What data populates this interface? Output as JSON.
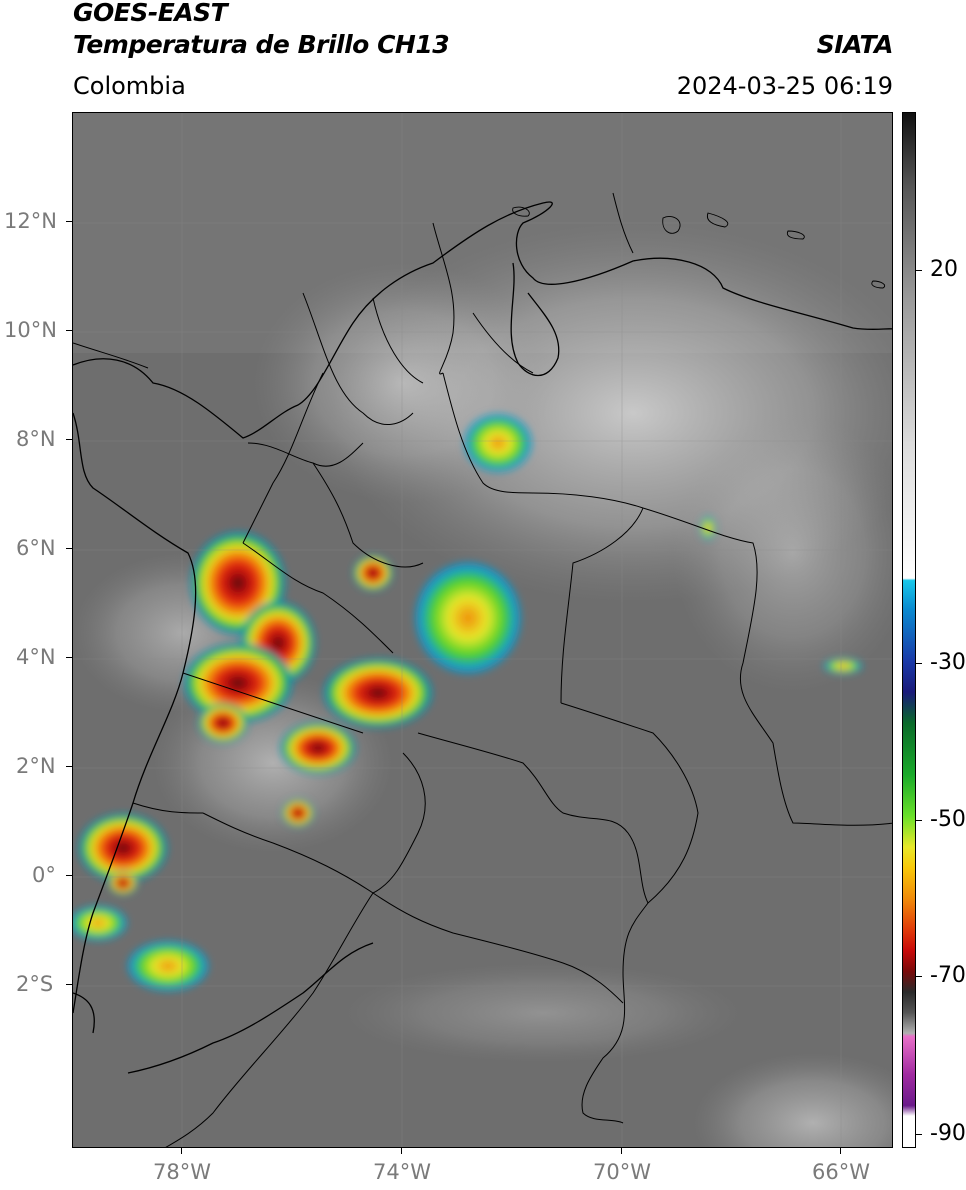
{
  "header": {
    "satellite": "GOES-EAST",
    "product": "Temperatura de Brillo CH13",
    "region": "Colombia",
    "agency": "SIATA",
    "datetime": "2024-03-25 06:19"
  },
  "map": {
    "lat_labels": [
      "12°N",
      "10°N",
      "8°N",
      "6°N",
      "4°N",
      "2°N",
      "0°",
      "2°S"
    ],
    "lon_labels": [
      "78°W",
      "74°W",
      "70°W",
      "66°W"
    ]
  },
  "colorbar": {
    "labels": [
      "20",
      "-30",
      "-50",
      "-70",
      "-90"
    ],
    "stops": [
      "#111111",
      "#555555",
      "#9a9a9a",
      "#dcdcdc",
      "#ffffff",
      "#19c8ea",
      "#0a8ad0",
      "#1a3aa8",
      "#1a1a7a",
      "#0a6a2a",
      "#1aaa2a",
      "#6ae02a",
      "#e8e82a",
      "#f8c80a",
      "#f08a0a",
      "#e03a0a",
      "#c80a0a",
      "#7a0a0a",
      "#2a2a2a",
      "#555555",
      "#b0b0b0",
      "#e870c8",
      "#a02aa0",
      "#6a1a8a",
      "#ffffff"
    ]
  }
}
